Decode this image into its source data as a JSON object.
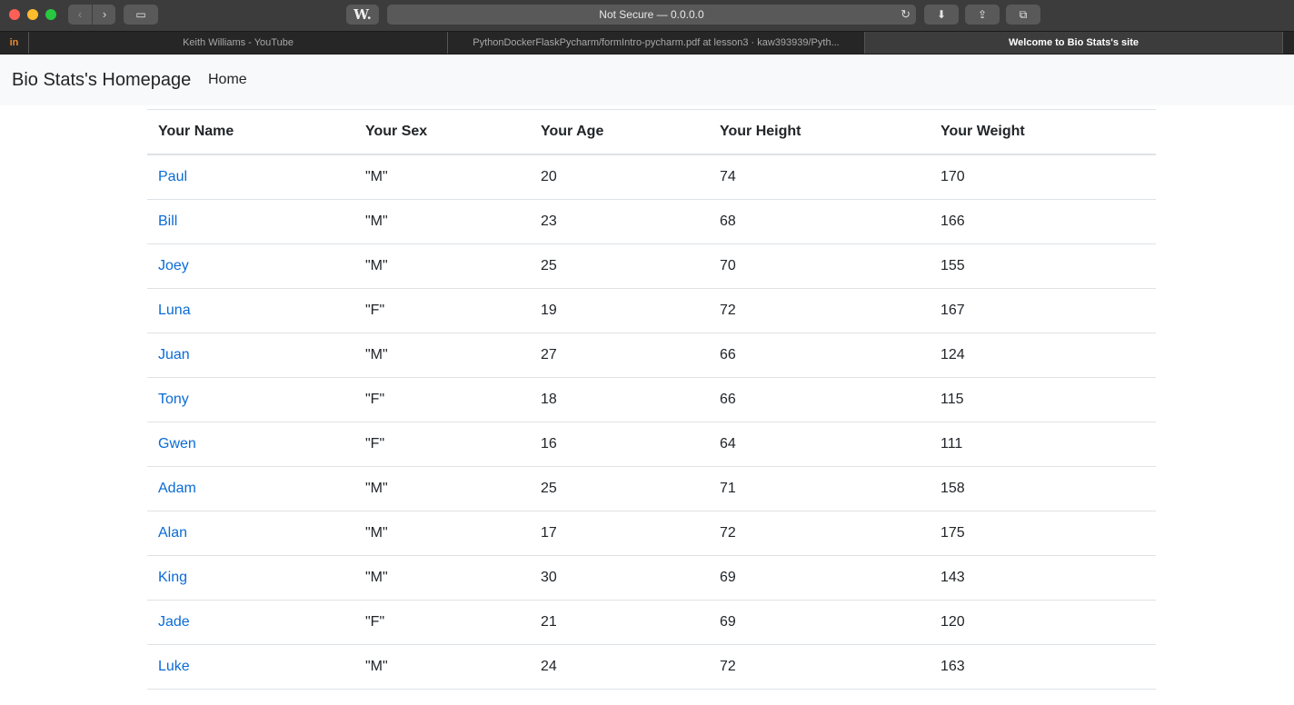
{
  "browser": {
    "address": "Not Secure — 0.0.0.0",
    "w_button": "W.",
    "pinned_tab": "in",
    "tabs": [
      {
        "label": "Keith Williams - YouTube"
      },
      {
        "label": "PythonDockerFlaskPycharm/formIntro-pycharm.pdf at lesson3 · kaw393939/Pyth..."
      },
      {
        "label": "Welcome to Bio Stats's site"
      }
    ],
    "icons": {
      "back": "‹",
      "forward": "›",
      "reload": "↻",
      "sidebar": "▭",
      "download": "⬇",
      "share": "⇪",
      "tabs": "⧉"
    }
  },
  "navbar": {
    "brand": "Bio Stats's Homepage",
    "home": "Home"
  },
  "table": {
    "headers": [
      "Your Name",
      "Your Sex",
      "Your Age",
      "Your Height",
      "Your Weight"
    ],
    "rows": [
      {
        "name": "Paul",
        "sex": "\"M\"",
        "age": "20",
        "height": "74",
        "weight": "170"
      },
      {
        "name": "Bill",
        "sex": "\"M\"",
        "age": "23",
        "height": "68",
        "weight": "166"
      },
      {
        "name": "Joey",
        "sex": "\"M\"",
        "age": "25",
        "height": "70",
        "weight": "155"
      },
      {
        "name": "Luna",
        "sex": "\"F\"",
        "age": "19",
        "height": "72",
        "weight": "167"
      },
      {
        "name": "Juan",
        "sex": "\"M\"",
        "age": "27",
        "height": "66",
        "weight": "124"
      },
      {
        "name": "Tony",
        "sex": "\"F\"",
        "age": "18",
        "height": "66",
        "weight": "115"
      },
      {
        "name": "Gwen",
        "sex": "\"F\"",
        "age": "16",
        "height": "64",
        "weight": "111"
      },
      {
        "name": "Adam",
        "sex": "\"M\"",
        "age": "25",
        "height": "71",
        "weight": "158"
      },
      {
        "name": "Alan",
        "sex": "\"M\"",
        "age": "17",
        "height": "72",
        "weight": "175"
      },
      {
        "name": "King",
        "sex": "\"M\"",
        "age": "30",
        "height": "69",
        "weight": "143"
      },
      {
        "name": "Jade",
        "sex": "\"F\"",
        "age": "21",
        "height": "69",
        "weight": "120"
      },
      {
        "name": "Luke",
        "sex": "\"M\"",
        "age": "24",
        "height": "72",
        "weight": "163"
      }
    ]
  }
}
